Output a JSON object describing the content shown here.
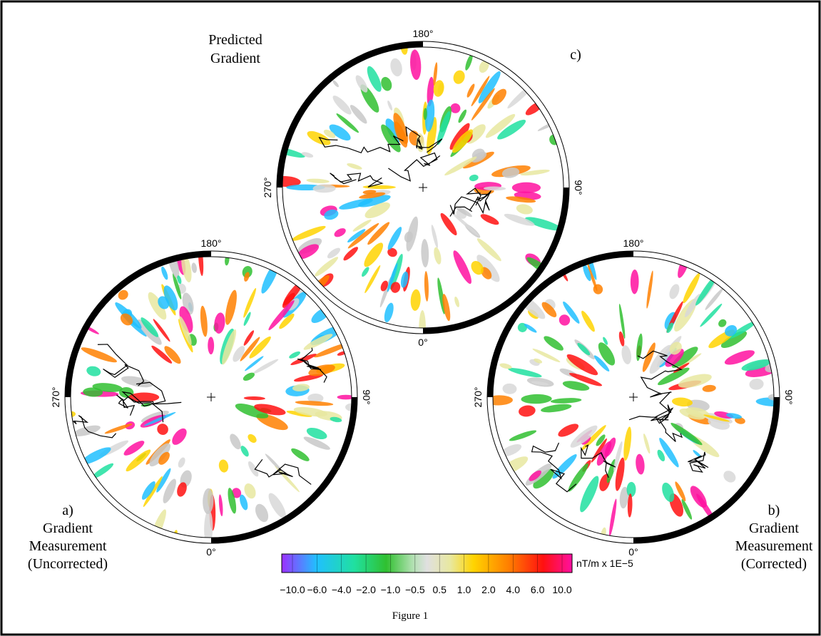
{
  "panels": [
    {
      "label_lines": [
        "a)",
        "Gradient",
        "Measurement",
        "(Uncorrected)"
      ],
      "degrees": {
        "top": "180°",
        "right": "90°",
        "bottom": "0°",
        "left": "270°"
      }
    },
    {
      "label_lines": [
        "b)",
        "Gradient",
        "Measurement",
        "(Corrected)"
      ],
      "degrees": {
        "top": "180°",
        "right": "90°",
        "bottom": "0°",
        "left": "270°"
      }
    },
    {
      "label_lines": [
        "c)"
      ],
      "title_lines": [
        "Predicted",
        "Gradient"
      ],
      "degrees": {
        "top": "180°",
        "right": "90°",
        "bottom": "0°",
        "left": "270°"
      }
    }
  ],
  "colorbar": {
    "ticks": [
      "−10.0",
      "−6.0",
      "−4.0",
      "−2.0",
      "−1.0",
      "−0.5",
      "0.5",
      "1.0",
      "2.0",
      "4.0",
      "6.0",
      "10.0"
    ],
    "unit": "nT/m x 1E−5"
  },
  "caption": "Figure 1"
}
